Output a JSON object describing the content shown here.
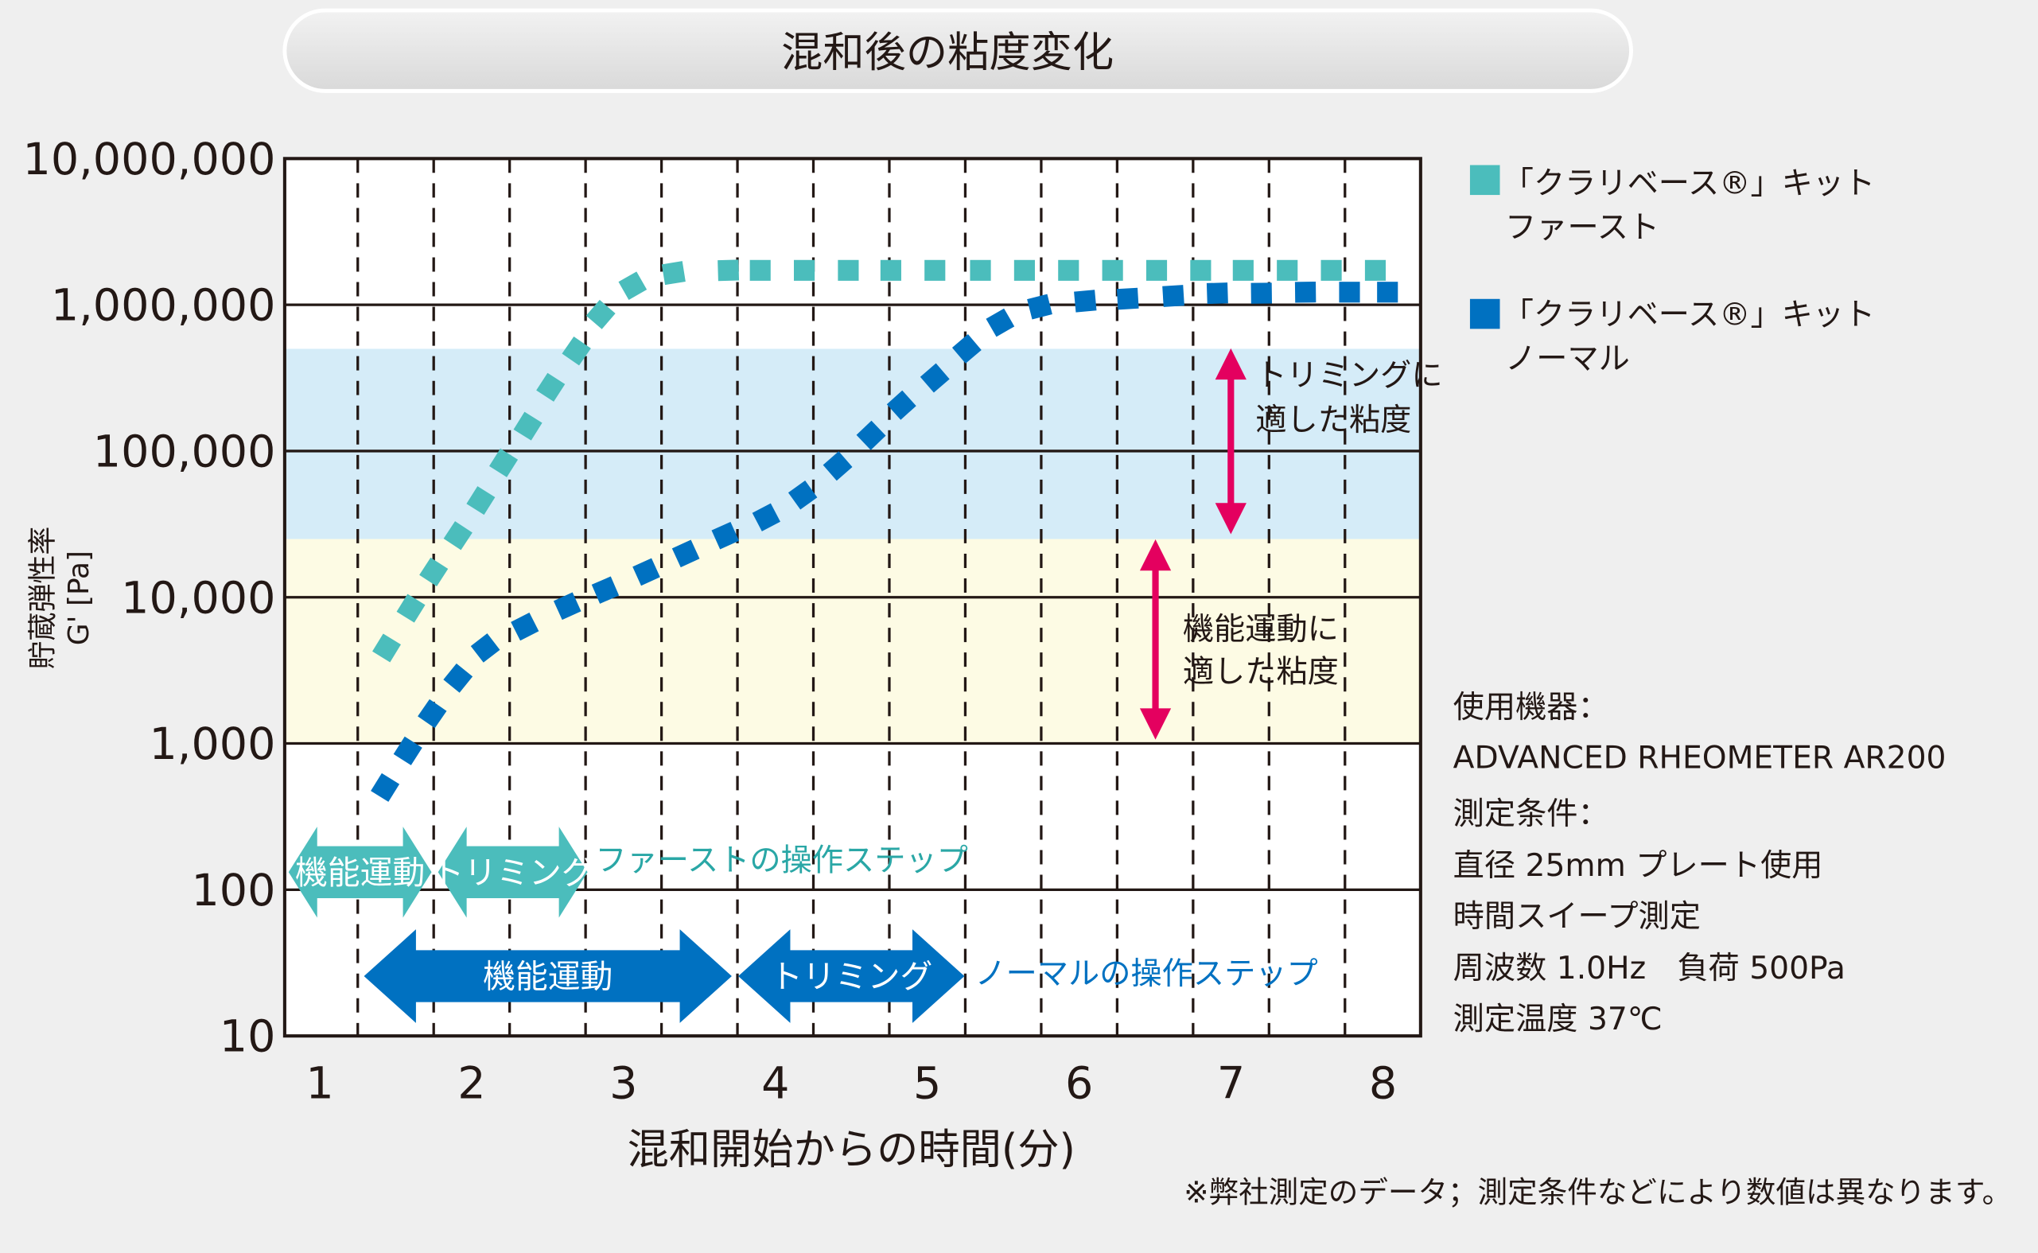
{
  "chart_data": {
    "type": "scatter",
    "title": "混和後の粘度変化",
    "xlabel": "混和開始からの時間(分)",
    "ylabel": "貯蔵弾性率",
    "ylabel2": "G' [Pa]",
    "yscale": "log",
    "xlim": [
      0.75,
      8.25
    ],
    "ylim": [
      10,
      10000000
    ],
    "x_ticks": [
      "1",
      "2",
      "3",
      "4",
      "5",
      "6",
      "7",
      "8"
    ],
    "y_ticks": [
      {
        "v": 10000000,
        "label": "10,000,000"
      },
      {
        "v": 1000000,
        "label": "1,000,000"
      },
      {
        "v": 100000,
        "label": "100,000"
      },
      {
        "v": 10000,
        "label": "10,000"
      },
      {
        "v": 1000,
        "label": "1,000"
      },
      {
        "v": 100,
        "label": "100"
      },
      {
        "v": 10,
        "label": "10"
      }
    ],
    "vertical_dashed_gridlines_at": [
      1.25,
      1.75,
      2.25,
      2.75,
      3.25,
      3.75,
      4.25,
      4.75,
      5.25,
      5.75,
      6.25,
      6.75,
      7.25,
      7.75
    ],
    "bands": [
      {
        "name": "trimming",
        "from": 25000,
        "to": 500000,
        "color": "#d5ecf8",
        "label": "トリミングに\n適した粘度",
        "label_lines": [
          "トリミングに",
          "適した粘度"
        ]
      },
      {
        "name": "function",
        "from": 1000,
        "to": 25000,
        "color": "#fdfbe4",
        "label_lines": [
          "機能運動に",
          "適した粘度"
        ]
      }
    ],
    "series": [
      {
        "name": "「クラリベース®」キット ファースト",
        "legend_lines": [
          "「クラリベース®」キット",
          "ファースト"
        ],
        "color": "#4bbdbc",
        "points": [
          [
            1.44,
            4500
          ],
          [
            1.6,
            8400
          ],
          [
            1.75,
            14900
          ],
          [
            1.91,
            26400
          ],
          [
            2.06,
            45900
          ],
          [
            2.21,
            83000
          ],
          [
            2.37,
            148000
          ],
          [
            2.52,
            273000
          ],
          [
            2.69,
            483000
          ],
          [
            2.85,
            858000
          ],
          [
            3.06,
            1350000
          ],
          [
            3.33,
            1650000
          ],
          [
            3.69,
            1720000
          ],
          [
            3.9,
            1720000
          ],
          [
            4.19,
            1720000
          ],
          [
            4.48,
            1720000
          ],
          [
            4.76,
            1720000
          ],
          [
            5.05,
            1720000
          ],
          [
            5.35,
            1720000
          ],
          [
            5.64,
            1720000
          ],
          [
            5.93,
            1720000
          ],
          [
            6.22,
            1720000
          ],
          [
            6.51,
            1720000
          ],
          [
            6.8,
            1720000
          ],
          [
            7.08,
            1720000
          ],
          [
            7.37,
            1720000
          ],
          [
            7.66,
            1720000
          ],
          [
            7.95,
            1720000
          ]
        ]
      },
      {
        "name": "「クラリベース®」キット ノーマル",
        "legend_lines": [
          "「クラリベース®」キット",
          "ノーマル"
        ],
        "color": "#0071c1",
        "points": [
          [
            1.43,
            500
          ],
          [
            1.58,
            890
          ],
          [
            1.74,
            1600
          ],
          [
            1.91,
            2800
          ],
          [
            2.09,
            4500
          ],
          [
            2.35,
            6300
          ],
          [
            2.63,
            8700
          ],
          [
            2.88,
            11200
          ],
          [
            3.15,
            14900
          ],
          [
            3.41,
            19900
          ],
          [
            3.67,
            26400
          ],
          [
            3.94,
            35200
          ],
          [
            4.18,
            50000
          ],
          [
            4.41,
            79000
          ],
          [
            4.63,
            128000
          ],
          [
            4.83,
            206000
          ],
          [
            5.05,
            316000
          ],
          [
            5.26,
            500000
          ],
          [
            5.48,
            755000
          ],
          [
            5.74,
            970000
          ],
          [
            6.04,
            1060000
          ],
          [
            6.32,
            1100000
          ],
          [
            6.62,
            1150000
          ],
          [
            6.91,
            1200000
          ],
          [
            7.2,
            1200000
          ],
          [
            7.49,
            1220000
          ],
          [
            7.78,
            1220000
          ],
          [
            8.03,
            1220000
          ]
        ]
      }
    ],
    "step_arrows": {
      "fast": {
        "label": "ファーストの操作ステップ",
        "color": "#4bbdbc",
        "steps": [
          {
            "label": "機能運動",
            "from": 0.8,
            "to": 1.74
          },
          {
            "label": "トリミング",
            "from": 1.78,
            "to": 2.77
          }
        ]
      },
      "normal": {
        "label": "ノーマルの操作ステップ",
        "color": "#0071c1",
        "steps": [
          {
            "label": "機能運動",
            "from": 1.29,
            "to": 3.71
          },
          {
            "label": "トリミング",
            "from": 3.76,
            "to": 5.24
          }
        ]
      }
    },
    "legend_position": "right"
  },
  "conditions": {
    "lines": [
      "使用機器：",
      "ADVANCED RHEOMETER AR200",
      "測定条件：",
      "直径 25mm プレート使用",
      "時間スイープ測定",
      "周波数 1.0Hz　負荷 500Pa",
      "測定温度 37℃"
    ]
  },
  "footnote": "※弊社測定のデータ；測定条件などにより数値は異なります。",
  "colors": {
    "accent": "#e4005f",
    "fast": "#4bbdbc",
    "normal": "#0071c1"
  }
}
